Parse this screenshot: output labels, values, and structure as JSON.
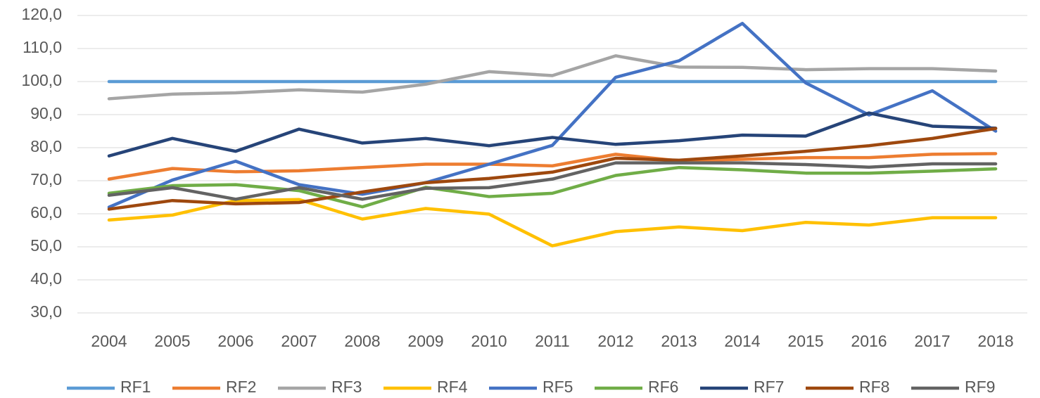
{
  "chart_data": {
    "type": "line",
    "categories": [
      "2004",
      "2005",
      "2006",
      "2007",
      "2008",
      "2009",
      "2010",
      "2011",
      "2012",
      "2013",
      "2014",
      "2015",
      "2016",
      "2017",
      "2018"
    ],
    "ylim": [
      30,
      120
    ],
    "yticks": [
      {
        "value": 30,
        "label": "30,0"
      },
      {
        "value": 40,
        "label": "40,0"
      },
      {
        "value": 50,
        "label": "50,0"
      },
      {
        "value": 60,
        "label": "60,0"
      },
      {
        "value": 70,
        "label": "70,0"
      },
      {
        "value": 80,
        "label": "80,0"
      },
      {
        "value": 90,
        "label": "90,0"
      },
      {
        "value": 100,
        "label": "100,0"
      },
      {
        "value": 110,
        "label": "110,0"
      },
      {
        "value": 120,
        "label": "120,0"
      }
    ],
    "grid": true,
    "legend": "bottom",
    "series": [
      {
        "name": "RF1",
        "color": "#5b9bd5",
        "values": [
          100,
          100,
          100,
          100,
          100,
          100,
          100,
          100,
          100,
          100,
          100,
          100,
          100,
          100,
          100
        ]
      },
      {
        "name": "RF2",
        "color": "#ed7d31",
        "values": [
          70.5,
          73.7,
          72.7,
          73.0,
          74.0,
          75.0,
          75.0,
          74.5,
          78.0,
          76.0,
          76.5,
          77.0,
          77.0,
          78.0,
          78.2
        ]
      },
      {
        "name": "RF3",
        "color": "#a5a5a5",
        "values": [
          94.8,
          96.2,
          96.6,
          97.5,
          96.8,
          99.2,
          103.0,
          101.8,
          107.8,
          104.4,
          104.3,
          103.6,
          103.9,
          103.9,
          103.2
        ]
      },
      {
        "name": "RF4",
        "color": "#ffc000",
        "values": [
          58.1,
          59.6,
          64.0,
          64.3,
          58.4,
          61.6,
          59.9,
          50.3,
          54.6,
          56.0,
          54.9,
          57.4,
          56.6,
          58.8,
          58.8
        ]
      },
      {
        "name": "RF5",
        "color": "#4472c4",
        "values": [
          62.0,
          70.2,
          75.9,
          68.8,
          65.9,
          69.4,
          75.0,
          80.7,
          101.3,
          106.3,
          117.6,
          99.6,
          89.9,
          97.2,
          85.0
        ]
      },
      {
        "name": "RF6",
        "color": "#70ad47",
        "values": [
          66.2,
          68.5,
          68.8,
          67.0,
          62.1,
          68.0,
          65.2,
          66.2,
          71.6,
          74.0,
          73.3,
          72.3,
          72.3,
          72.9,
          73.6
        ]
      },
      {
        "name": "RF7",
        "color": "#264478",
        "values": [
          77.5,
          82.8,
          78.9,
          85.6,
          81.4,
          82.8,
          80.6,
          83.1,
          81.0,
          82.1,
          83.8,
          83.5,
          90.5,
          86.5,
          85.9
        ]
      },
      {
        "name": "RF8",
        "color": "#9e480e",
        "values": [
          61.4,
          64.0,
          63.0,
          63.4,
          66.6,
          69.4,
          70.7,
          72.6,
          76.8,
          76.2,
          77.5,
          78.9,
          80.6,
          82.8,
          85.8
        ]
      },
      {
        "name": "RF9",
        "color": "#636363",
        "values": [
          65.6,
          67.9,
          64.4,
          67.9,
          64.4,
          67.7,
          67.9,
          70.5,
          75.4,
          75.4,
          75.4,
          74.9,
          74.1,
          75.1,
          75.1
        ]
      }
    ]
  }
}
